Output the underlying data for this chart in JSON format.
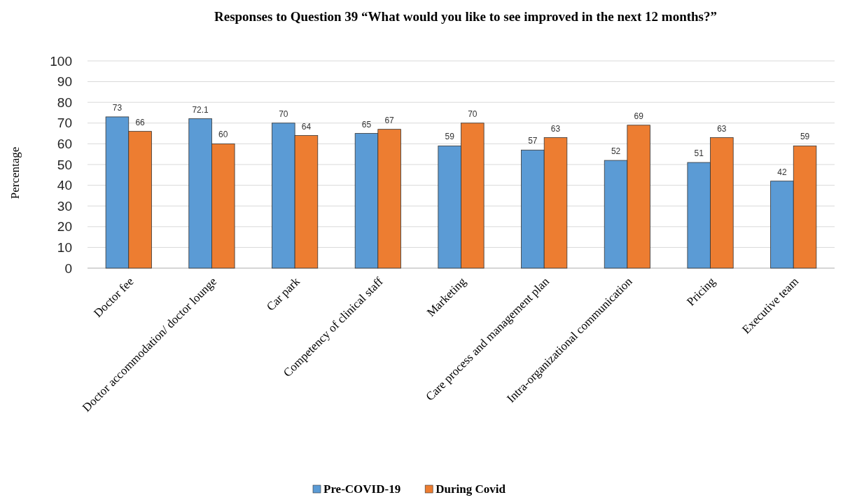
{
  "chart_data": {
    "type": "bar",
    "title": "Responses to Question 39 “What would you like to see improved in the next 12 months?”",
    "ylabel": "Percentage",
    "categories": [
      "Doctor fee",
      "Doctor accommodation/ doctor lounge",
      "Car park",
      "Competency of clinical staff",
      "Marketing",
      "Care process and management plan",
      "Intra-organizational communication",
      "Pricing",
      "Executive team"
    ],
    "series": [
      {
        "name": "Pre-COVID-19",
        "color": "#5b9bd5",
        "values": [
          73,
          72.1,
          70,
          65,
          59,
          57,
          52,
          51,
          42
        ]
      },
      {
        "name": "During Covid",
        "color": "#ed7d31",
        "values": [
          66,
          60,
          64,
          67,
          70,
          63,
          69,
          63,
          59
        ]
      }
    ],
    "ylim": [
      0,
      100
    ],
    "yticks": [
      0,
      10,
      20,
      30,
      40,
      50,
      60,
      70,
      80,
      90,
      100
    ],
    "grid": "y",
    "legend": "bottom",
    "data_labels": true
  }
}
